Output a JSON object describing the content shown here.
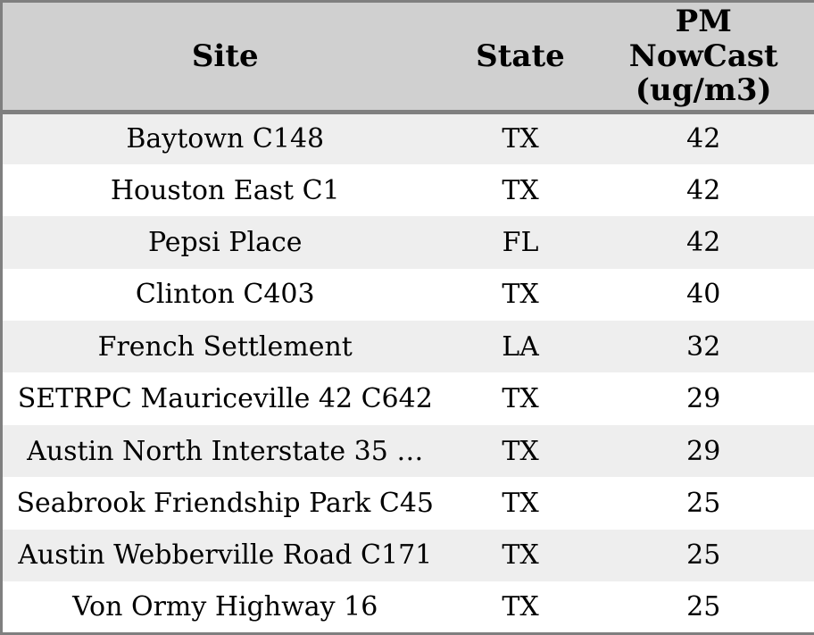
{
  "chart_data": {
    "type": "table",
    "title": "",
    "columns": [
      "Site",
      "State",
      "PM NowCast (ug/m3)"
    ],
    "rows": [
      {
        "site": "Baytown C148",
        "state": "TX",
        "pm_nowcast": 42
      },
      {
        "site": "Houston East C1",
        "state": "TX",
        "pm_nowcast": 42
      },
      {
        "site": "Pepsi Place",
        "state": "FL",
        "pm_nowcast": 42
      },
      {
        "site": "Clinton C403",
        "state": "TX",
        "pm_nowcast": 40
      },
      {
        "site": "French Settlement",
        "state": "LA",
        "pm_nowcast": 32
      },
      {
        "site": "SETRPC Mauriceville 42 C642",
        "state": "TX",
        "pm_nowcast": 29
      },
      {
        "site": "Austin North Interstate 35 …",
        "state": "TX",
        "pm_nowcast": 29
      },
      {
        "site": "Seabrook Friendship Park C45",
        "state": "TX",
        "pm_nowcast": 25
      },
      {
        "site": "Austin Webberville Road C171",
        "state": "TX",
        "pm_nowcast": 25
      },
      {
        "site": "Von Ormy Highway 16",
        "state": "TX",
        "pm_nowcast": 25
      }
    ],
    "layout": {
      "striped": true,
      "text_align": "center"
    }
  },
  "colors": {
    "header_bg": "#d0d0d0",
    "row_alt_bg": "#eeeeee",
    "row_bg": "#ffffff",
    "border": "#7f7f7f",
    "text": "#000000"
  }
}
